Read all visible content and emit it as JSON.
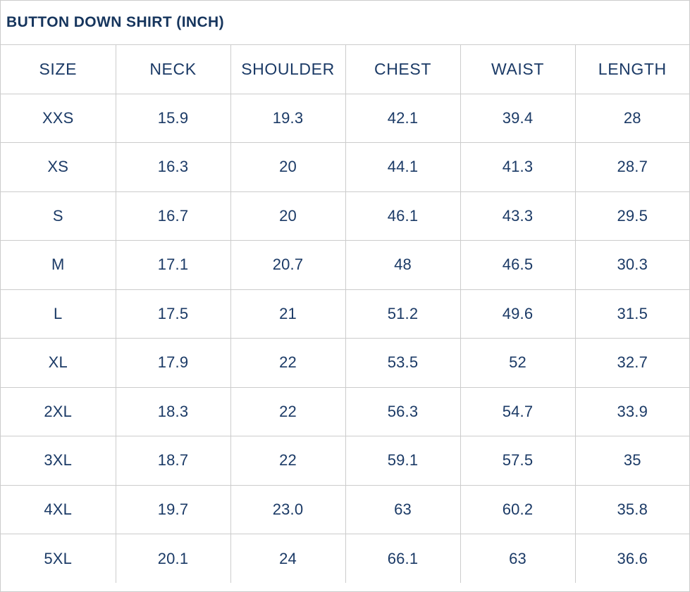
{
  "title": "BUTTON DOWN SHIRT (INCH)",
  "colors": {
    "title_text": "#16355d",
    "cell_text": "#1b3a66",
    "grid_border": "#cccccc",
    "background": "#ffffff"
  },
  "chart_data": {
    "type": "table",
    "title": "BUTTON DOWN SHIRT (INCH)",
    "unit": "inch",
    "columns": [
      "SIZE",
      "NECK",
      "SHOULDER",
      "CHEST",
      "WAIST",
      "LENGTH"
    ],
    "rows": [
      [
        "XXS",
        "15.9",
        "19.3",
        "42.1",
        "39.4",
        "28"
      ],
      [
        "XS",
        "16.3",
        "20",
        "44.1",
        "41.3",
        "28.7"
      ],
      [
        "S",
        "16.7",
        "20",
        "46.1",
        "43.3",
        "29.5"
      ],
      [
        "M",
        "17.1",
        "20.7",
        "48",
        "46.5",
        "30.3"
      ],
      [
        "L",
        "17.5",
        "21",
        "51.2",
        "49.6",
        "31.5"
      ],
      [
        "XL",
        "17.9",
        "22",
        "53.5",
        "52",
        "32.7"
      ],
      [
        "2XL",
        "18.3",
        "22",
        "56.3",
        "54.7",
        "33.9"
      ],
      [
        "3XL",
        "18.7",
        "22",
        "59.1",
        "57.5",
        "35"
      ],
      [
        "4XL",
        "19.7",
        "23.0",
        "63",
        "60.2",
        "35.8"
      ],
      [
        "5XL",
        "20.1",
        "24",
        "66.1",
        "63",
        "36.6"
      ]
    ],
    "layout": {
      "grid": true,
      "header_row": true,
      "first_column_is_size_label": true
    }
  }
}
